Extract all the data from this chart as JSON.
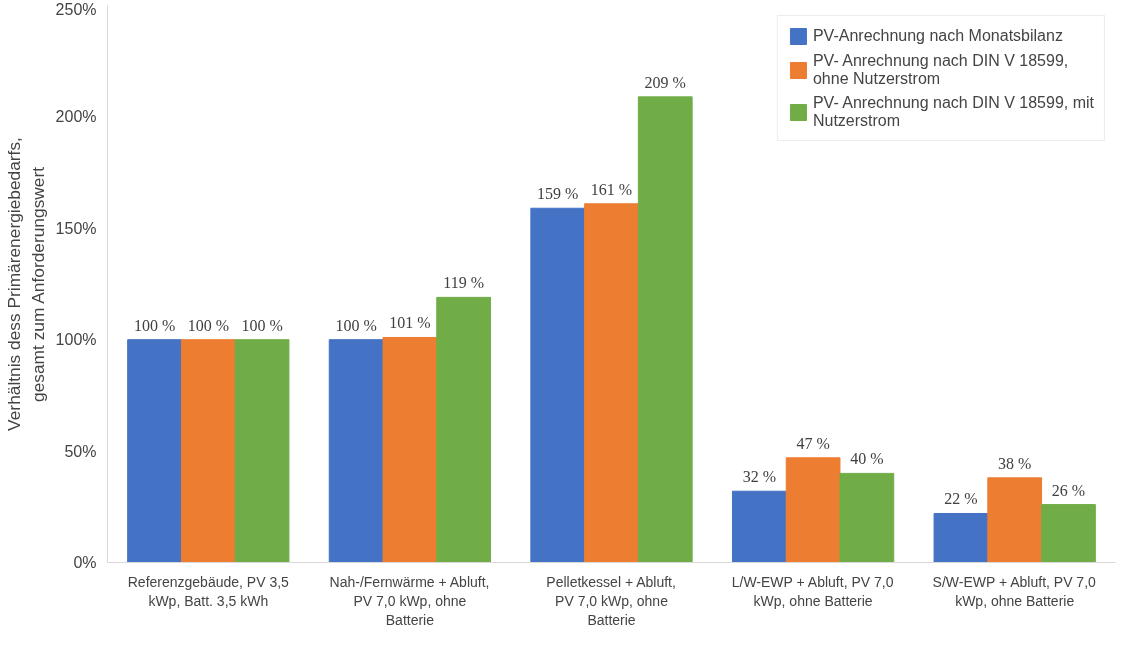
{
  "chart_data": {
    "type": "bar",
    "ylabel": "Verhältnis dess Primärenergiebedarfs, gesamt zum Anforderungswert",
    "categories": [
      "Referenzgebäude, PV 3,5 kWp, Batt. 3,5 kWh",
      "Nah-/Fernwärme + Abluft, PV 7,0 kWp, ohne Batterie",
      "Pelletkessel + Abluft, PV 7,0 kWp, ohne Batterie",
      "L/W-EWP + Abluft, PV 7,0 kWp, ohne Batterie",
      "S/W-EWP + Abluft, PV 7,0 kWp, ohne Batterie"
    ],
    "series": [
      {
        "name": "PV-Anrechnung nach Monatsbilanz",
        "color": "#4472c4",
        "values": [
          100,
          100,
          159,
          32,
          22
        ],
        "value_labels": [
          "100 %",
          "100 %",
          "159 %",
          "32 %",
          "22 %"
        ]
      },
      {
        "name": "PV- Anrechnung nach DIN V 18599, ohne Nutzerstrom",
        "color": "#ed7d31",
        "values": [
          100,
          101,
          161,
          47,
          38
        ],
        "value_labels": [
          "100 %",
          "101 %",
          "161 %",
          "47 %",
          "38 %"
        ]
      },
      {
        "name": "PV- Anrechnung nach DIN V 18599, mit Nutzerstrom",
        "color": "#70ad47",
        "values": [
          100,
          119,
          209,
          40,
          26
        ],
        "value_labels": [
          "100 %",
          "119 %",
          "209 %",
          "40 %",
          "26 %"
        ]
      }
    ],
    "ylim": [
      0,
      250
    ],
    "yticks": [
      {
        "value": 0,
        "label": "0%"
      },
      {
        "value": 50,
        "label": "50%"
      },
      {
        "value": 100,
        "label": "100%"
      },
      {
        "value": 150,
        "label": "150%"
      },
      {
        "value": 200,
        "label": "200%"
      },
      {
        "value": 250,
        "label": "250%"
      }
    ],
    "grid": false,
    "legend": "top right"
  }
}
